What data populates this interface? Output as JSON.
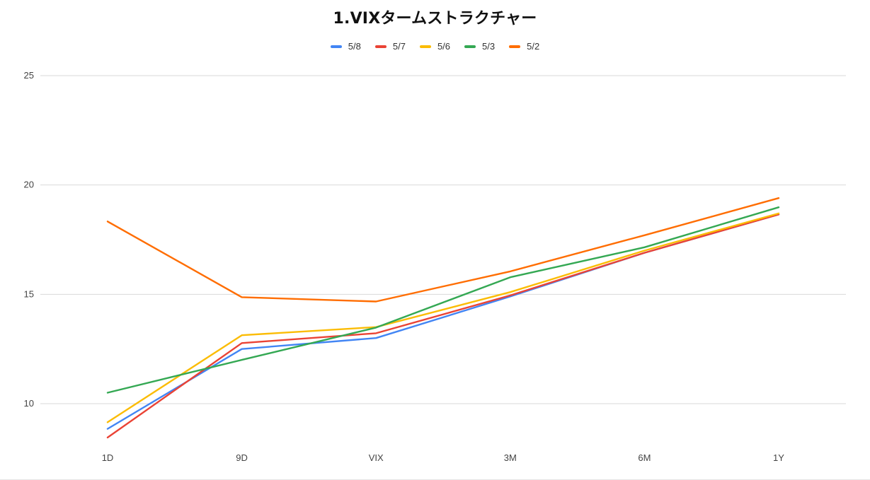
{
  "chart_data": {
    "type": "line",
    "title": "1.VIXタームストラクチャー",
    "xlabel": "",
    "ylabel": "",
    "categories": [
      "1D",
      "9D",
      "VIX",
      "3M",
      "6M",
      "1Y"
    ],
    "ylim": [
      8.4,
      25
    ],
    "yticks": [
      10,
      15,
      20,
      25
    ],
    "grid": true,
    "legend_position": "top",
    "series": [
      {
        "name": "5/8",
        "color": "#4285F4",
        "values": [
          8.85,
          12.5,
          13.0,
          14.9,
          16.9,
          18.65
        ]
      },
      {
        "name": "5/7",
        "color": "#EA4335",
        "values": [
          8.45,
          12.77,
          13.22,
          14.95,
          16.9,
          18.65
        ]
      },
      {
        "name": "5/6",
        "color": "#FBBC04",
        "values": [
          9.15,
          13.13,
          13.5,
          15.1,
          17.0,
          18.7
        ]
      },
      {
        "name": "5/3",
        "color": "#34A853",
        "values": [
          10.5,
          12.0,
          13.48,
          15.78,
          17.15,
          18.98
        ]
      },
      {
        "name": "5/2",
        "color": "#FF6D01",
        "values": [
          18.33,
          14.87,
          14.67,
          16.05,
          17.7,
          19.4
        ]
      }
    ]
  }
}
